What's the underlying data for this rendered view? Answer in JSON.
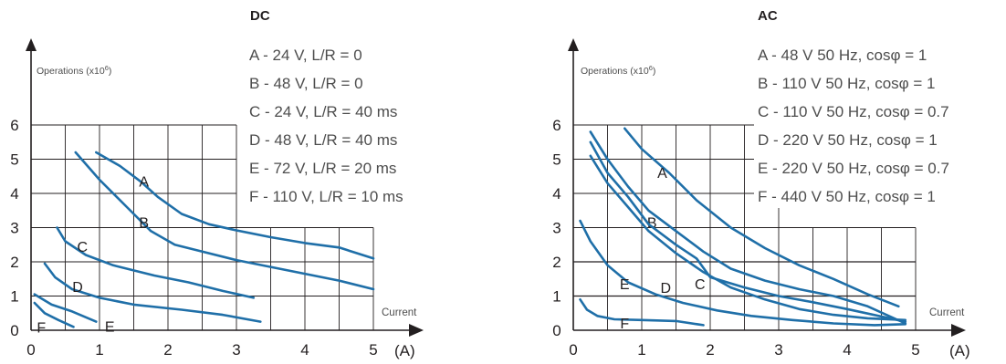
{
  "colors": {
    "curve": "#1f6fa8",
    "grid": "#231f20",
    "text": "#231f20",
    "legend": "#4d4d4d"
  },
  "chart_data": [
    {
      "type": "line",
      "title": "DC",
      "ylabel": "Operations (x10",
      "ylabel_sup": "6",
      "ylabel_end": ")",
      "xlabel": "Current",
      "xunit": "(A)",
      "xlim": [
        0,
        5
      ],
      "ylim": [
        0,
        6
      ],
      "x_ticks": [
        "0",
        "1",
        "2",
        "3",
        "4",
        "5"
      ],
      "y_ticks": [
        "0",
        "1",
        "2",
        "3",
        "4",
        "5",
        "6"
      ],
      "legend": [
        "A - 24 V, L/R = 0",
        "B - 48 V, L/R = 0",
        "C - 24 V, L/R = 40 ms",
        "D - 48 V, L/R = 40 ms",
        "E - 72 V, L/R = 20 ms",
        "F - 110 V, L/R = 10 ms"
      ],
      "series": [
        {
          "name": "A",
          "label_at": [
            1.65,
            4.2
          ],
          "points": [
            [
              0.95,
              5.2
            ],
            [
              1.3,
              4.8
            ],
            [
              1.6,
              4.35
            ],
            [
              1.85,
              3.9
            ],
            [
              2.2,
              3.4
            ],
            [
              2.6,
              3.1
            ],
            [
              3.0,
              2.92
            ],
            [
              3.5,
              2.72
            ],
            [
              4.0,
              2.55
            ],
            [
              4.5,
              2.42
            ],
            [
              5.0,
              2.1
            ]
          ]
        },
        {
          "name": "B",
          "label_at": [
            1.65,
            3.0
          ],
          "points": [
            [
              0.65,
              5.2
            ],
            [
              1.0,
              4.4
            ],
            [
              1.4,
              3.6
            ],
            [
              1.75,
              2.9
            ],
            [
              2.1,
              2.5
            ],
            [
              2.5,
              2.3
            ],
            [
              3.0,
              2.05
            ],
            [
              3.5,
              1.85
            ],
            [
              4.0,
              1.65
            ],
            [
              4.5,
              1.45
            ],
            [
              5.0,
              1.2
            ]
          ]
        },
        {
          "name": "C",
          "label_at": [
            0.75,
            2.3
          ],
          "points": [
            [
              0.38,
              3.0
            ],
            [
              0.5,
              2.6
            ],
            [
              0.8,
              2.2
            ],
            [
              1.2,
              1.9
            ],
            [
              1.8,
              1.6
            ],
            [
              2.3,
              1.4
            ],
            [
              2.8,
              1.15
            ],
            [
              3.25,
              0.95
            ]
          ]
        },
        {
          "name": "D",
          "label_at": [
            0.68,
            1.12
          ],
          "points": [
            [
              0.2,
              1.95
            ],
            [
              0.35,
              1.55
            ],
            [
              0.6,
              1.2
            ],
            [
              1.0,
              0.95
            ],
            [
              1.5,
              0.75
            ],
            [
              2.2,
              0.6
            ],
            [
              2.8,
              0.45
            ],
            [
              3.35,
              0.25
            ]
          ]
        },
        {
          "name": "E",
          "label_at": [
            1.15,
            -0.04
          ],
          "points": [
            [
              0.05,
              1.05
            ],
            [
              0.3,
              0.75
            ],
            [
              0.6,
              0.55
            ],
            [
              0.95,
              0.25
            ]
          ]
        },
        {
          "name": "F",
          "label_at": [
            0.15,
            -0.07
          ],
          "points": [
            [
              0.05,
              0.8
            ],
            [
              0.2,
              0.5
            ],
            [
              0.4,
              0.3
            ],
            [
              0.62,
              0.1
            ]
          ]
        }
      ]
    },
    {
      "type": "line",
      "title": "AC",
      "ylabel": "Operations (x10",
      "ylabel_sup": "6",
      "ylabel_end": ")",
      "xlabel": "Current",
      "xunit": "(A)",
      "xlim": [
        0,
        5
      ],
      "ylim": [
        0,
        6
      ],
      "x_ticks": [
        "0",
        "1",
        "2",
        "3",
        "4",
        "5"
      ],
      "y_ticks": [
        "0",
        "1",
        "2",
        "3",
        "4",
        "5",
        "6"
      ],
      "legend": [
        "A - 48 V 50 Hz, cosφ = 1",
        "B - 110 V 50 Hz, cosφ = 1",
        "C - 110 V 50 Hz, cosφ = 0.7",
        "D - 220 V 50 Hz, cosφ = 1",
        "E - 220 V 50 Hz, cosφ = 0.7",
        "F - 440 V 50 Hz, cosφ = 1"
      ],
      "series": [
        {
          "name": "A",
          "label_at": [
            1.3,
            4.45
          ],
          "points": [
            [
              0.75,
              5.9
            ],
            [
              1.0,
              5.3
            ],
            [
              1.4,
              4.6
            ],
            [
              1.8,
              3.8
            ],
            [
              2.3,
              3.0
            ],
            [
              2.8,
              2.4
            ],
            [
              3.3,
              1.9
            ],
            [
              3.8,
              1.5
            ],
            [
              4.3,
              1.05
            ],
            [
              4.75,
              0.7
            ]
          ]
        },
        {
          "name": "B",
          "label_at": [
            1.15,
            3.0
          ],
          "points": [
            [
              0.25,
              5.8
            ],
            [
              0.5,
              5.0
            ],
            [
              0.8,
              4.2
            ],
            [
              1.1,
              3.5
            ],
            [
              1.5,
              2.9
            ],
            [
              1.9,
              2.3
            ],
            [
              2.3,
              1.8
            ],
            [
              2.8,
              1.45
            ],
            [
              3.3,
              1.2
            ],
            [
              3.8,
              1.0
            ],
            [
              4.3,
              0.7
            ],
            [
              4.85,
              0.2
            ]
          ]
        },
        {
          "name": "C",
          "label_at": [
            1.85,
            1.2
          ],
          "points": [
            [
              0.25,
              5.5
            ],
            [
              0.5,
              4.6
            ],
            [
              0.8,
              3.9
            ],
            [
              1.1,
              3.1
            ],
            [
              1.5,
              2.5
            ],
            [
              1.8,
              2.1
            ],
            [
              2.0,
              1.55
            ],
            [
              2.5,
              1.25
            ],
            [
              3.0,
              1.0
            ],
            [
              3.5,
              0.82
            ],
            [
              4.0,
              0.62
            ],
            [
              4.85,
              0.25
            ]
          ]
        },
        {
          "name": "D",
          "label_at": [
            1.35,
            1.1
          ],
          "points": [
            [
              0.25,
              5.1
            ],
            [
              0.5,
              4.3
            ],
            [
              0.8,
              3.6
            ],
            [
              1.1,
              2.9
            ],
            [
              1.5,
              2.25
            ],
            [
              1.9,
              1.7
            ],
            [
              2.3,
              1.25
            ],
            [
              2.8,
              0.9
            ],
            [
              3.3,
              0.62
            ],
            [
              3.8,
              0.45
            ],
            [
              4.3,
              0.35
            ],
            [
              4.85,
              0.3
            ]
          ]
        },
        {
          "name": "E",
          "label_at": [
            0.75,
            1.2
          ],
          "points": [
            [
              0.1,
              3.2
            ],
            [
              0.25,
              2.6
            ],
            [
              0.5,
              1.9
            ],
            [
              0.8,
              1.4
            ],
            [
              1.2,
              1.05
            ],
            [
              1.6,
              0.8
            ],
            [
              2.1,
              0.58
            ],
            [
              2.6,
              0.42
            ],
            [
              3.2,
              0.3
            ],
            [
              3.8,
              0.2
            ],
            [
              4.4,
              0.15
            ],
            [
              4.85,
              0.18
            ]
          ]
        },
        {
          "name": "F",
          "label_at": [
            0.75,
            0.05
          ],
          "points": [
            [
              0.1,
              0.9
            ],
            [
              0.2,
              0.6
            ],
            [
              0.35,
              0.42
            ],
            [
              0.6,
              0.32
            ],
            [
              1.0,
              0.3
            ],
            [
              1.5,
              0.27
            ],
            [
              1.9,
              0.15
            ]
          ]
        }
      ]
    }
  ]
}
